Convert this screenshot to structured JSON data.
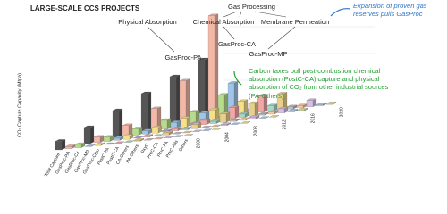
{
  "chart_data": {
    "type": "bar3d",
    "title": "LARGE-SCALE CCS PROJECTS",
    "y_label": "CO₂ Capture Capacity (Mtpa)",
    "categories": [
      "Total Capture",
      "GasProc-PA",
      "GasProc-CA",
      "GasProc-MP",
      "GasProc-Cryo",
      "PostC-PA",
      "PostC-CA",
      "CA-Others",
      "PA-Others",
      "OxyC",
      "PreC-CA",
      "PreC-PA",
      "PreC-Ads",
      "Others"
    ],
    "colors": [
      "#555555",
      "#f4b8a8",
      "#b7dd8c",
      "#9fc5e8",
      "#f6e08a",
      "#c9a8e0",
      "#f2a6a6",
      "#a8d8c8",
      "#e8d08a",
      "#bfbfbf",
      "#f8c8a0",
      "#d6c0e8",
      "#a8c8f0",
      "#e0e0a0"
    ],
    "series": [
      {
        "name": "2000",
        "values": [
          8,
          2,
          3,
          0,
          1,
          0,
          0,
          0,
          1,
          0,
          0,
          0,
          0,
          0
        ]
      },
      {
        "name": "2004",
        "values": [
          15,
          5,
          4,
          2,
          3,
          0,
          1,
          0,
          2,
          0,
          0,
          0,
          0,
          0
        ]
      },
      {
        "name": "2008",
        "values": [
          25,
          10,
          6,
          3,
          5,
          1,
          2,
          1,
          4,
          0,
          0,
          1,
          0,
          0
        ]
      },
      {
        "name": "2012",
        "values": [
          35,
          20,
          8,
          5,
          8,
          2,
          4,
          2,
          8,
          1,
          1,
          2,
          0,
          0
        ]
      },
      {
        "name": "2016",
        "values": [
          45,
          40,
          10,
          8,
          10,
          3,
          10,
          3,
          12,
          1,
          2,
          4,
          1,
          1
        ]
      },
      {
        "name": "2020",
        "values": [
          55,
          95,
          20,
          30,
          12,
          4,
          15,
          5,
          15,
          2,
          2,
          6,
          1,
          1
        ]
      }
    ],
    "ylim": [
      0,
      100
    ],
    "annotations": [
      "Gas Processing",
      "Physical Absorption",
      "Chemical Absorption",
      "Membrane Permeation",
      "GasProc-PA",
      "GasProc-CA",
      "GasProc-MP",
      "Expansion of proven gas reserves pulls GasProc",
      "Carbon taxes pull post-combustion chemical absorption (PostC-CA) capture and physical absorption of CO₂ from other industrial sources (PA-Others)"
    ]
  }
}
